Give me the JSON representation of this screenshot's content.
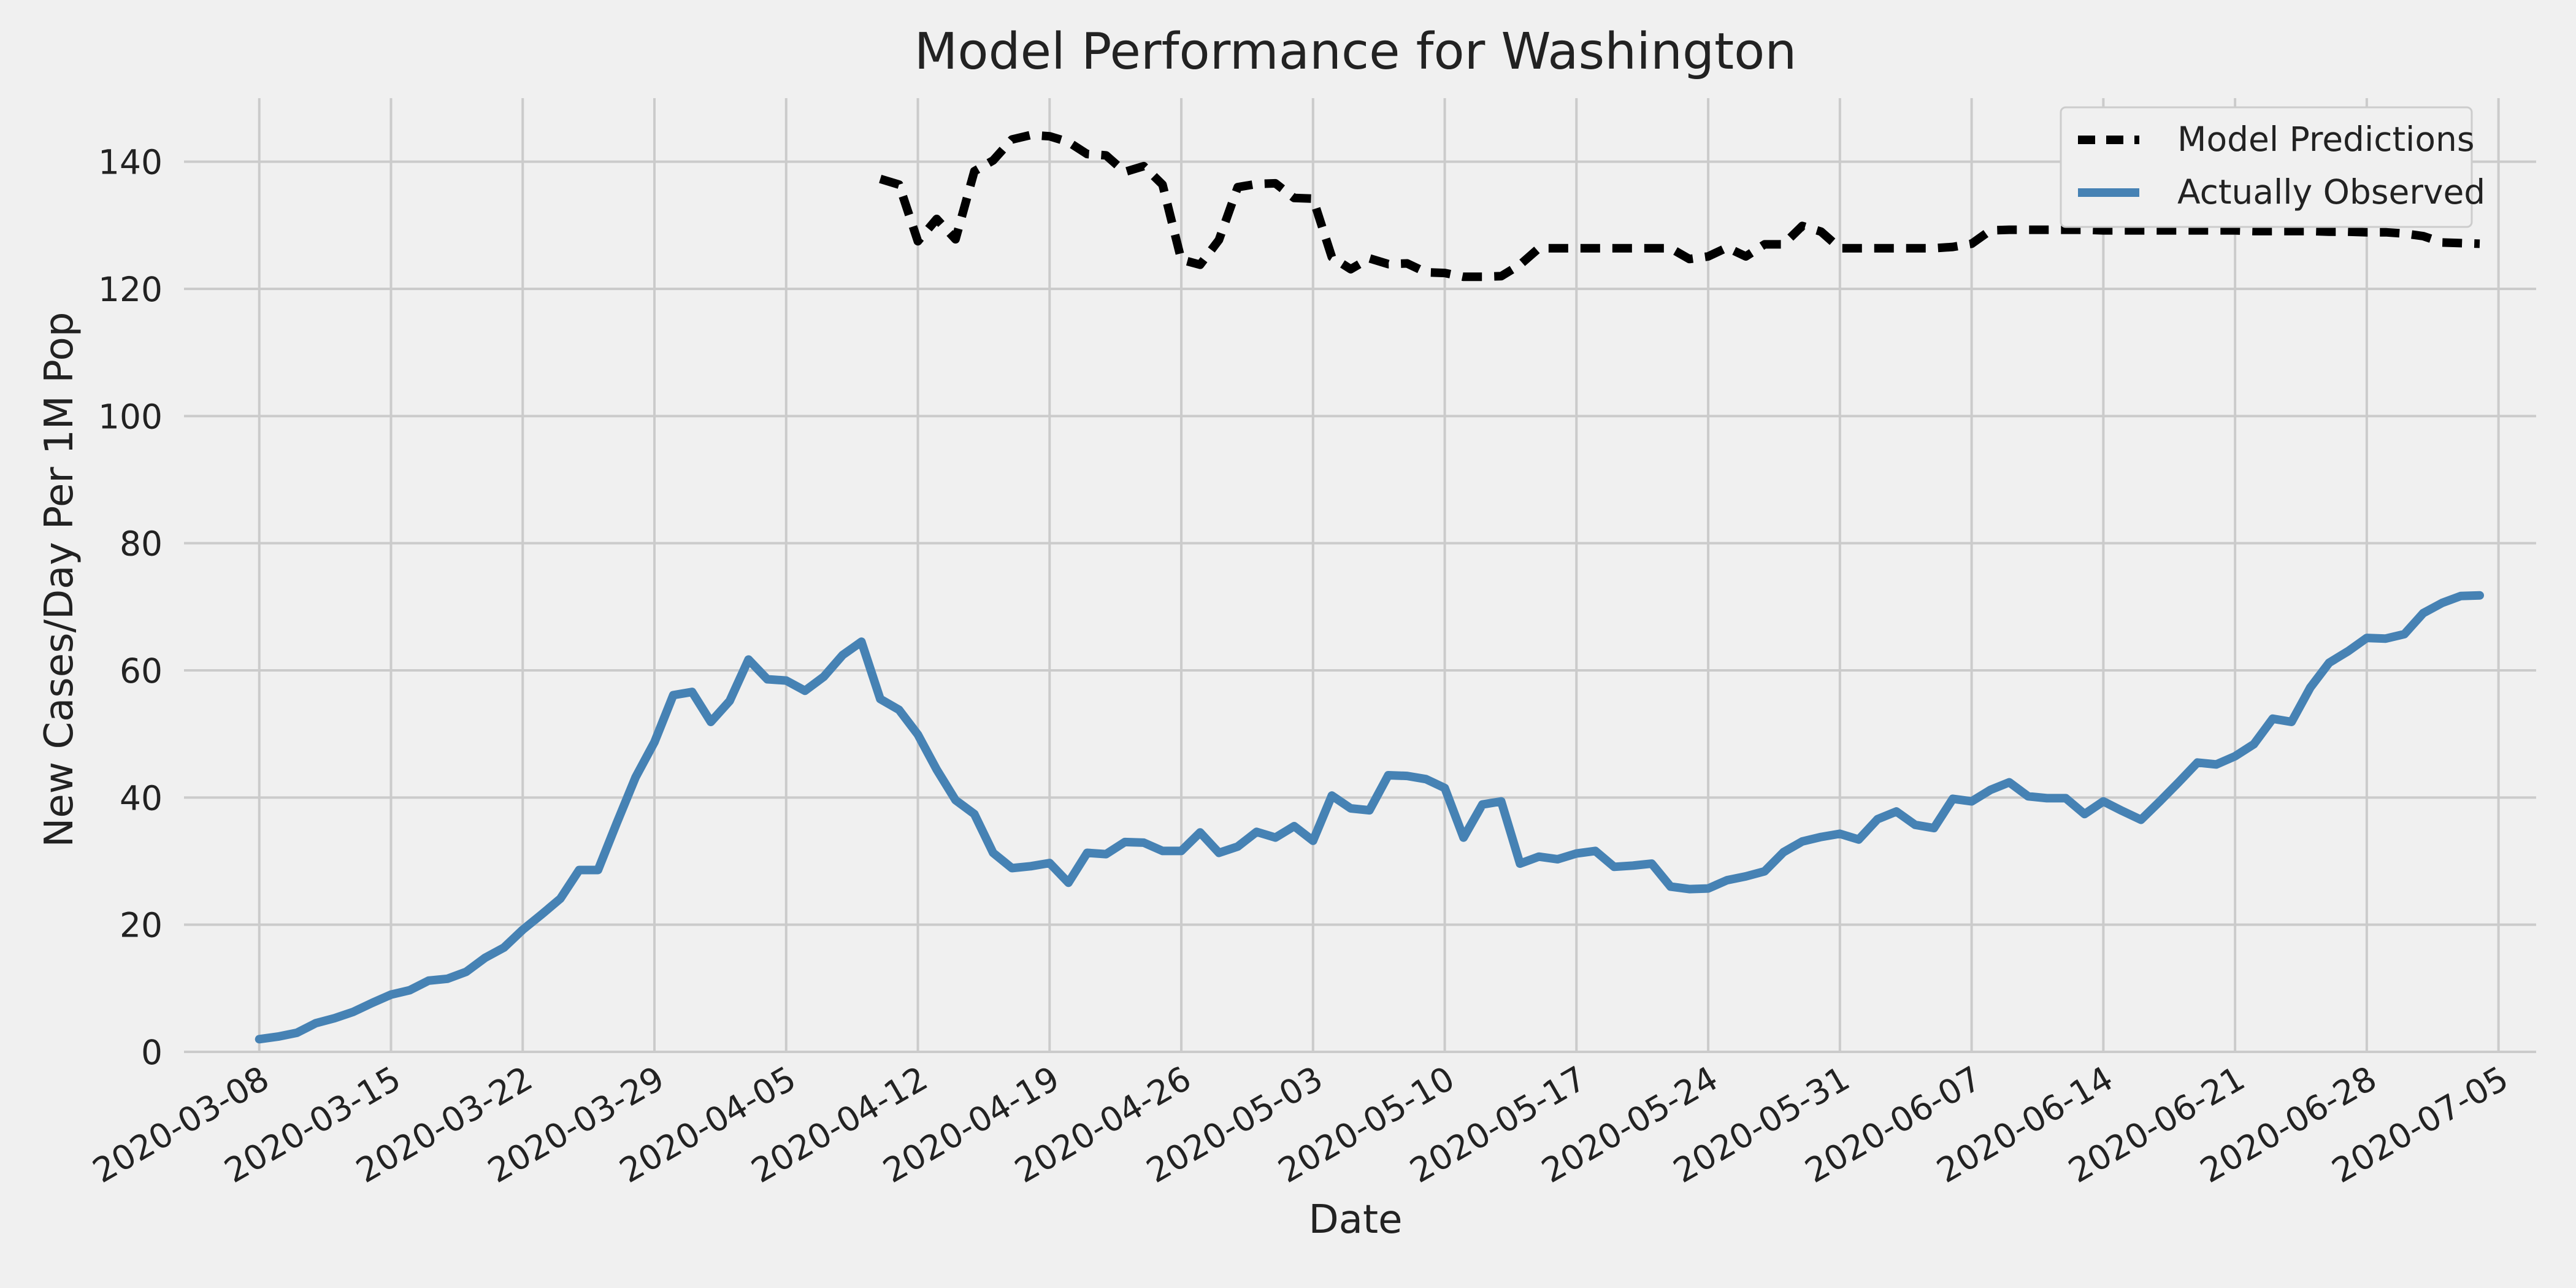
{
  "chart_data": {
    "type": "line",
    "title": "Model Performance for Washington",
    "xlabel": "Date",
    "ylabel": "New Cases/Day Per 1M Pop",
    "ylim": [
      0,
      150
    ],
    "xlim": [
      "2020-03-04",
      "2020-07-07"
    ],
    "grid": true,
    "legend_position": "top-right",
    "y_ticks": [
      0,
      20,
      40,
      60,
      80,
      100,
      120,
      140
    ],
    "x_ticks": [
      "2020-03-08",
      "2020-03-15",
      "2020-03-22",
      "2020-03-29",
      "2020-04-05",
      "2020-04-12",
      "2020-04-19",
      "2020-04-26",
      "2020-05-03",
      "2020-05-10",
      "2020-05-17",
      "2020-05-24",
      "2020-05-31",
      "2020-06-07",
      "2020-06-14",
      "2020-06-21",
      "2020-06-28",
      "2020-07-05"
    ],
    "series": [
      {
        "name": "Model Predictions",
        "color": "#000000",
        "style": "dashed",
        "start_date": "2020-04-10",
        "values": [
          137.3,
          136.4,
          127.5,
          131.0,
          127.8,
          138.5,
          140.2,
          143.5,
          144.2,
          144.0,
          143.1,
          141.2,
          141.0,
          138.4,
          139.3,
          136.4,
          124.6,
          123.8,
          127.7,
          136.0,
          136.5,
          136.6,
          134.3,
          134.2,
          125.0,
          123.1,
          124.8,
          123.9,
          124.0,
          122.6,
          122.5,
          121.9,
          121.9,
          122.0,
          123.8,
          126.4,
          126.4,
          126.4,
          126.4,
          126.4,
          126.4,
          126.4,
          126.4,
          124.7,
          125.1,
          126.5,
          125.1,
          127.0,
          127.0,
          129.9,
          129.0,
          126.4,
          126.4,
          126.4,
          126.4,
          126.4,
          126.4,
          126.6,
          127.1,
          129.2,
          129.3,
          129.3,
          129.3,
          129.3,
          129.3,
          129.2,
          129.2,
          129.2,
          129.2,
          129.2,
          129.2,
          129.2,
          129.2,
          129.1,
          129.1,
          129.1,
          129.1,
          129.0,
          129.0,
          128.9,
          128.9,
          128.7,
          128.3,
          127.3,
          127.2,
          127.1
        ]
      },
      {
        "name": "Actually Observed",
        "color": "#4682b4",
        "style": "solid",
        "start_date": "2020-03-08",
        "values": [
          2.0,
          2.4,
          3.0,
          4.5,
          5.3,
          6.3,
          7.7,
          9.0,
          9.7,
          11.2,
          11.5,
          12.6,
          14.8,
          16.4,
          19.2,
          21.6,
          24.1,
          28.6,
          28.6,
          36.0,
          43.2,
          48.7,
          56.1,
          56.6,
          51.9,
          55.2,
          61.7,
          58.6,
          58.4,
          56.8,
          59.0,
          62.4,
          64.5,
          55.5,
          53.8,
          49.9,
          44.4,
          39.6,
          37.4,
          31.3,
          28.9,
          29.2,
          29.7,
          26.6,
          31.3,
          31.1,
          33.0,
          32.9,
          31.6,
          31.6,
          34.5,
          31.3,
          32.3,
          34.6,
          33.7,
          35.5,
          33.2,
          40.3,
          38.3,
          38.0,
          43.5,
          43.4,
          42.9,
          41.5,
          33.7,
          38.9,
          39.4,
          29.6,
          30.7,
          30.3,
          31.2,
          31.6,
          29.1,
          29.3,
          29.6,
          26.0,
          25.6,
          25.7,
          27.0,
          27.6,
          28.4,
          31.4,
          33.1,
          33.8,
          34.3,
          33.4,
          36.6,
          37.8,
          35.7,
          35.2,
          39.8,
          39.4,
          41.2,
          42.4,
          40.2,
          39.9,
          39.9,
          37.4,
          39.4,
          37.9,
          36.5,
          39.4,
          42.4,
          45.5,
          45.2,
          46.5,
          48.4,
          52.4,
          51.9,
          57.3,
          61.2,
          63.0,
          65.1,
          65.0,
          65.7,
          69.0,
          70.6,
          71.7,
          71.8
        ]
      }
    ]
  }
}
